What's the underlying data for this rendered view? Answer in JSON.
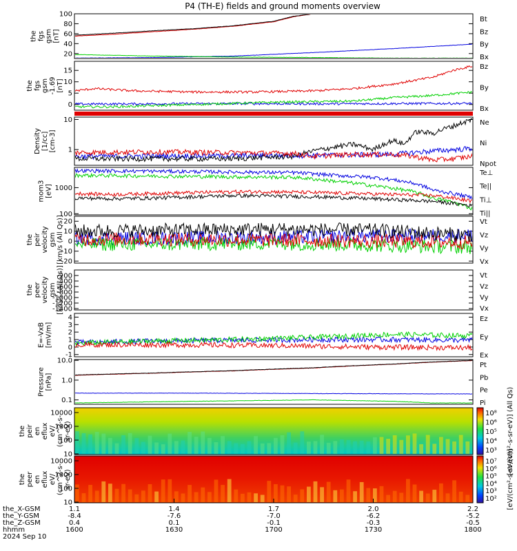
{
  "title": "P4 (TH-E) fields and ground moments overview",
  "colors": {
    "black": "#000000",
    "red": "#e00000",
    "green": "#00d000",
    "blue": "#0000e0"
  },
  "chart_data": [
    {
      "type": "line",
      "id": "fgs",
      "ylabel": [
        "the",
        "fgs",
        "gsm",
        "[nT]"
      ],
      "ylim": [
        10,
        100
      ],
      "yticks": [
        "100",
        "80",
        "60",
        "40",
        "20"
      ],
      "ytick_values": [
        100,
        80,
        60,
        40,
        20
      ],
      "series": [
        {
          "name": "Bt",
          "color": "#000000",
          "x": [
            0,
            0.1,
            0.2,
            0.3,
            0.4,
            0.5,
            0.55,
            0.6
          ],
          "y": [
            57,
            61,
            66,
            70,
            76,
            85,
            95,
            100
          ]
        },
        {
          "name": "Bz",
          "color": "#e00000",
          "x": [
            0,
            0.1,
            0.2,
            0.3,
            0.4,
            0.5,
            0.55,
            0.6
          ],
          "y": [
            55,
            59,
            64,
            69,
            75,
            84,
            94,
            100
          ]
        },
        {
          "name": "By",
          "color": "#00d000",
          "x": [
            0,
            0.2,
            0.4,
            0.6,
            0.8,
            1.0
          ],
          "y": [
            18,
            15,
            13,
            12,
            11,
            11
          ]
        },
        {
          "name": "Bx",
          "color": "#0000e0",
          "x": [
            0,
            0.2,
            0.4,
            0.6,
            0.8,
            1.0
          ],
          "y": [
            11,
            12,
            15,
            22,
            30,
            39
          ]
        }
      ]
    },
    {
      "type": "line",
      "id": "fgs-hp",
      "ylabel": [
        "the",
        "fgs",
        "gsm",
        "-1.69",
        "[nT]"
      ],
      "ylim": [
        -2.5,
        19
      ],
      "yticks": [
        "15",
        "10",
        "5",
        "0"
      ],
      "ytick_values": [
        15,
        10,
        5,
        0
      ],
      "series": [
        {
          "name": "Bz",
          "color": "#e00000",
          "x": [
            0,
            0.05,
            0.15,
            0.3,
            0.45,
            0.6,
            0.7,
            0.8,
            0.9,
            0.95,
            1.0
          ],
          "y": [
            6,
            7,
            6,
            5.5,
            5.5,
            6,
            7,
            9,
            12,
            15,
            17
          ]
        },
        {
          "name": "By",
          "color": "#00d000",
          "x": [
            0,
            0.1,
            0.2,
            0.3,
            0.5,
            0.7,
            0.8,
            0.9,
            1.0
          ],
          "y": [
            -1,
            -1,
            -0.5,
            0,
            1,
            1.5,
            3,
            4,
            5.5
          ]
        },
        {
          "name": "Bx",
          "color": "#0000e0",
          "x": [
            0,
            0.2,
            0.4,
            0.6,
            0.8,
            1.0
          ],
          "y": [
            0.2,
            0.3,
            0.4,
            0.3,
            0.4,
            0.5
          ]
        }
      ]
    },
    {
      "type": "line",
      "id": "density",
      "log": true,
      "ylabel": [
        "Density",
        "[1/cc]",
        "[cm-3]"
      ],
      "ylim": [
        0.3,
        12
      ],
      "yticks": [
        "10",
        "1"
      ],
      "ytick_values": [
        10,
        1
      ],
      "series": [
        {
          "name": "Ne",
          "color": "#e00000",
          "x": [
            0,
            0.2,
            0.4,
            0.55,
            0.6,
            0.7,
            0.8,
            0.85,
            0.9,
            0.95,
            1.0
          ],
          "y": [
            0.8,
            0.85,
            0.8,
            0.75,
            0.6,
            0.7,
            0.7,
            0.6,
            0.45,
            0.5,
            0.6
          ]
        },
        {
          "name": "Ni",
          "color": "#000000",
          "x": [
            0,
            0.2,
            0.4,
            0.55,
            0.65,
            0.7,
            0.75,
            0.8,
            0.83,
            0.86,
            0.9,
            0.95,
            1.0
          ],
          "y": [
            0.5,
            0.5,
            0.5,
            0.6,
            1.2,
            1.5,
            1.0,
            2.0,
            1.5,
            4.0,
            3.5,
            6.0,
            10.0
          ]
        },
        {
          "name": "Npot",
          "color": "#0000e0",
          "x": [
            0,
            0.3,
            0.6,
            0.8,
            0.9,
            1.0
          ],
          "y": [
            0.6,
            0.62,
            0.65,
            0.7,
            0.9,
            1.1
          ]
        }
      ]
    },
    {
      "type": "line",
      "id": "moments-t",
      "log": true,
      "ylabel": [
        "mom3",
        "[eV]"
      ],
      "ylim": [
        90,
        6000
      ],
      "yticks": [
        "1000",
        "100"
      ],
      "ytick_values": [
        1000,
        100
      ],
      "series": [
        {
          "name": "Te⊥",
          "color": "#e00000",
          "x": [
            0,
            0.1,
            0.2,
            0.3,
            0.4,
            0.5,
            0.6,
            0.7,
            0.8,
            0.9,
            1.0
          ],
          "y": [
            600,
            550,
            600,
            650,
            700,
            700,
            650,
            600,
            550,
            500,
            300
          ]
        },
        {
          "name": "Te||",
          "color": "#000000",
          "x": [
            0,
            0.1,
            0.2,
            0.3,
            0.4,
            0.5,
            0.6,
            0.7,
            0.8,
            0.9,
            1.0
          ],
          "y": [
            400,
            380,
            400,
            450,
            500,
            480,
            450,
            400,
            350,
            300,
            200
          ]
        },
        {
          "name": "Ti⊥",
          "color": "#0000e0",
          "x": [
            0,
            0.2,
            0.4,
            0.55,
            0.65,
            0.75,
            0.85,
            0.9,
            1.0
          ],
          "y": [
            4500,
            4300,
            4000,
            3800,
            3000,
            2500,
            1500,
            800,
            400
          ]
        },
        {
          "name": "Ti||",
          "color": "#00d000",
          "x": [
            0,
            0.2,
            0.4,
            0.55,
            0.65,
            0.75,
            0.85,
            0.9,
            1.0
          ],
          "y": [
            3000,
            2800,
            2600,
            2500,
            1800,
            1200,
            700,
            400,
            150
          ]
        }
      ]
    },
    {
      "type": "line",
      "id": "peir-velocity",
      "ylabel": [
        "the",
        "peir",
        "velocity",
        "gsm",
        "[km/s (All Qs)]"
      ],
      "ylim": [
        -22,
        25
      ],
      "yticks": [
        "20",
        "10",
        "0",
        "-10",
        "-20"
      ],
      "ytick_values": [
        20,
        10,
        0,
        -10,
        -20
      ],
      "series": [
        {
          "name": "Vt",
          "color": "#000000",
          "x": [
            0,
            0.25,
            0.5,
            0.75,
            1.0
          ],
          "y": [
            10,
            11,
            12,
            11,
            6
          ]
        },
        {
          "name": "Vz",
          "color": "#e00000",
          "x": [
            0,
            0.25,
            0.5,
            0.75,
            1.0
          ],
          "y": [
            2,
            2,
            1,
            0,
            -1
          ]
        },
        {
          "name": "Vy",
          "color": "#00d000",
          "x": [
            0,
            0.25,
            0.5,
            0.75,
            1.0
          ],
          "y": [
            -3,
            -3,
            -2,
            -4,
            -6
          ]
        },
        {
          "name": "Vx",
          "color": "#0000e0",
          "x": [
            0,
            0.25,
            0.5,
            0.75,
            1.0
          ],
          "y": [
            3,
            3,
            4,
            5,
            6
          ]
        }
      ]
    },
    {
      "type": "line",
      "id": "peer-velocity",
      "ylabel": [
        "the",
        "peer",
        "velocity",
        "gsm",
        "[km/s (All Qs)]"
      ],
      "ylim": [
        -1450,
        0
      ],
      "yticks": [
        "-200",
        "-400",
        "-600",
        "-800",
        "-1000",
        "-1200",
        "-1400"
      ],
      "ytick_values": [
        -200,
        -400,
        -600,
        -800,
        -1000,
        -1200,
        -1400
      ],
      "legend": [
        "Vt",
        "Vz",
        "Vy",
        "Vx"
      ],
      "series": []
    },
    {
      "type": "line",
      "id": "efield",
      "ylabel": [
        "E=-VxB",
        "[mV/m]"
      ],
      "ylim": [
        -1.3,
        4.5
      ],
      "yticks": [
        "4",
        "3",
        "2",
        "1",
        "0",
        "-1"
      ],
      "ytick_values": [
        4,
        3,
        2,
        1,
        0,
        -1
      ],
      "series": [
        {
          "name": "Ez",
          "color": "#e00000",
          "x": [
            0,
            0.25,
            0.5,
            0.75,
            1.0
          ],
          "y": [
            0.3,
            0.3,
            0.2,
            0.0,
            -0.1
          ]
        },
        {
          "name": "Ey",
          "color": "#00d000",
          "x": [
            0,
            0.2,
            0.4,
            0.6,
            0.8,
            1.0
          ],
          "y": [
            0.5,
            0.8,
            1.0,
            1.3,
            1.7,
            1.5
          ]
        },
        {
          "name": "Ex",
          "color": "#0000e0",
          "x": [
            0,
            0.2,
            0.4,
            0.6,
            0.8,
            1.0
          ],
          "y": [
            0.6,
            0.8,
            0.9,
            1.0,
            1.0,
            0.9
          ]
        }
      ]
    },
    {
      "type": "line",
      "id": "pressure",
      "log": true,
      "ylabel": [
        "Pressure",
        "[nPa]"
      ],
      "ylim": [
        0.06,
        11
      ],
      "yticks": [
        "10.0",
        "1.0",
        "0.1"
      ],
      "ytick_values": [
        10,
        1,
        0.1
      ],
      "series": [
        {
          "name": "Pt",
          "color": "#000000",
          "x": [
            0,
            0.2,
            0.4,
            0.6,
            0.8,
            1.0
          ],
          "y": [
            1.8,
            2.3,
            3.0,
            4.2,
            6.5,
            10.0
          ]
        },
        {
          "name": "Pb",
          "color": "#e00000",
          "x": [
            0,
            0.2,
            0.4,
            0.6,
            0.8,
            1.0
          ],
          "y": [
            1.75,
            2.25,
            2.95,
            4.1,
            6.4,
            9.8
          ]
        },
        {
          "name": "Pe",
          "color": "#00d000",
          "x": [
            0,
            0.2,
            0.4,
            0.6,
            0.8,
            0.9,
            1.0
          ],
          "y": [
            0.07,
            0.08,
            0.09,
            0.1,
            0.085,
            0.07,
            0.07
          ]
        },
        {
          "name": "Pi",
          "color": "#0000e0",
          "x": [
            0,
            0.3,
            0.6,
            1.0
          ],
          "y": [
            0.22,
            0.22,
            0.21,
            0.2
          ]
        }
      ]
    },
    {
      "type": "heatmap",
      "id": "peir-spectrogram",
      "ylabel": [
        "the",
        "peir",
        "en",
        "eflux",
        "eV/",
        "(cm^2-s-",
        "sr-eV)"
      ],
      "yticks": [
        "10000",
        "1000",
        "100",
        "10"
      ],
      "colorbar_ticks": [
        "10⁸",
        "10⁶",
        "10⁵",
        "10⁴",
        "10³"
      ],
      "colorbar_label": "[eV/(cm²-s-sr-eV)] (All Qs)"
    },
    {
      "type": "heatmap",
      "id": "peer-spectrogram",
      "ylabel": [
        "the",
        "peer",
        "en",
        "eflux",
        "eV/",
        "(cm^2-s-",
        "sr-eV)"
      ],
      "yticks": [
        "10000",
        "1000",
        "100",
        "10"
      ],
      "colorbar_ticks": [
        "10⁷",
        "10⁶",
        "10⁵",
        "10⁴",
        "10³",
        "10²"
      ],
      "colorbar_label": "[eV/(cm²-s-sr-eV)]"
    }
  ],
  "xaxis": {
    "row_labels": [
      "the_X-GSM",
      "the_Y-GSM",
      "the_Z-GSM",
      "hhmm",
      "2024 Sep 10"
    ],
    "columns": [
      [
        "1.1",
        "-8.4",
        "0.4",
        "1600"
      ],
      [
        "1.4",
        "-7.6",
        "0.1",
        "1630"
      ],
      [
        "1.7",
        "-7.0",
        "-0.1",
        "1700"
      ],
      [
        "2.0",
        "-6.2",
        "-0.3",
        "1730"
      ],
      [
        "2.2",
        "-5.2",
        "-0.5",
        "1800"
      ]
    ]
  }
}
